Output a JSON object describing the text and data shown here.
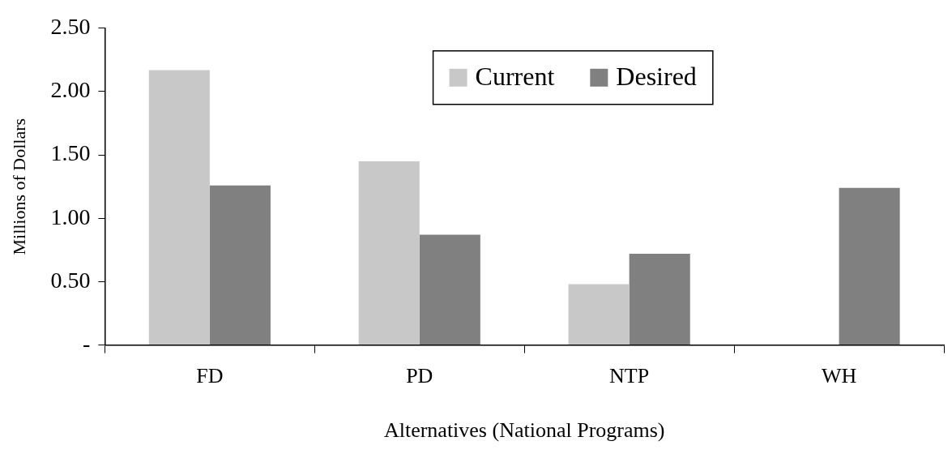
{
  "chart_data": {
    "type": "bar",
    "xlabel": "Alternatives (National Programs)",
    "ylabel": "Millions of Dollars",
    "categories": [
      "FD",
      "PD",
      "NTP",
      "WH"
    ],
    "series": [
      {
        "name": "Current",
        "color": "#c8c8c8",
        "values": [
          2.17,
          1.45,
          0.48,
          null
        ]
      },
      {
        "name": "Desired",
        "color": "#808080",
        "values": [
          1.26,
          0.87,
          0.72,
          1.24
        ]
      }
    ],
    "ylim": [
      0,
      2.5
    ],
    "yticks": [
      {
        "value": 0,
        "label": "-"
      },
      {
        "value": 0.5,
        "label": "0.50"
      },
      {
        "value": 1,
        "label": "1.00"
      },
      {
        "value": 1.5,
        "label": "1.50"
      },
      {
        "value": 2,
        "label": "2.00"
      },
      {
        "value": 2.5,
        "label": "2.50"
      }
    ],
    "grid": false,
    "legend": "top"
  }
}
